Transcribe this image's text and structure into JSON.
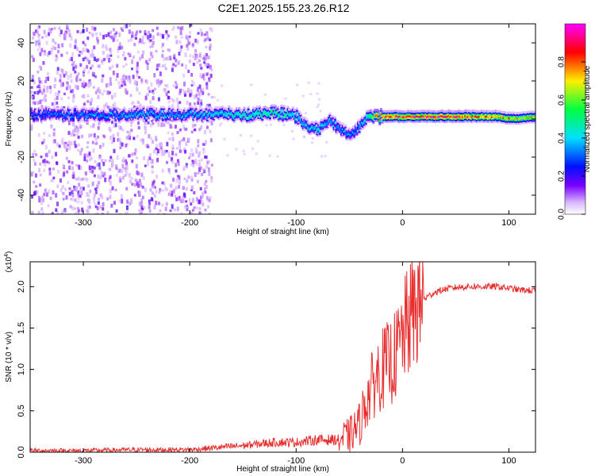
{
  "title": "C2E1.2025.155.23.26.R12",
  "colors": {
    "signal": "#ff0000",
    "line": "#e83030",
    "frame": "#000000"
  },
  "chart_data": [
    {
      "type": "heatmap",
      "xlabel": "Height of straight line (km)",
      "ylabel": "Frequency (Hz)",
      "xlim": [
        -350,
        125
      ],
      "ylim": [
        -50,
        50
      ],
      "x_ticks": [
        -300,
        -200,
        -100,
        0,
        100
      ],
      "x_tick_labels": [
        "-300",
        "-200",
        "-100",
        "0",
        "100"
      ],
      "y_ticks": [
        -40,
        -20,
        0,
        20,
        40
      ],
      "y_tick_labels": [
        "-40",
        "-20",
        "0",
        "20",
        "40"
      ],
      "grid": false,
      "colorbar": {
        "label": "Normalized spectral amplitude",
        "ticks": [
          0.0,
          0.2,
          0.4,
          0.6,
          0.8
        ],
        "tick_labels": [
          "0.0",
          "0.2",
          "0.4",
          "0.6",
          "0.8"
        ],
        "range": [
          0,
          1
        ],
        "colormap": "rainbow (white-violet-blue-cyan-green-yellow-red-magenta)"
      },
      "ridge_frequency": {
        "x": [
          -350,
          -300,
          -250,
          -200,
          -150,
          -120,
          -100,
          -90,
          -80,
          -70,
          -60,
          -50,
          -45,
          -40,
          -35,
          -30,
          -25,
          -20,
          0,
          50,
          80,
          90,
          100,
          110,
          125
        ],
        "y": [
          3,
          3,
          3,
          3,
          3,
          4,
          2,
          -3,
          -5,
          0,
          -4,
          -8,
          -5,
          -2,
          2,
          3,
          2,
          2,
          2,
          2,
          2,
          2,
          1,
          1,
          2
        ],
        "peak_amplitude": [
          0.35,
          0.4,
          0.45,
          0.45,
          0.55,
          0.6,
          0.5,
          0.45,
          0.5,
          0.45,
          0.45,
          0.4,
          0.4,
          0.45,
          0.5,
          0.7,
          0.85,
          1.0,
          1.0,
          1.0,
          0.95,
          0.9,
          0.85,
          0.8,
          0.8
        ]
      },
      "scatter_region_x": [
        -350,
        -180
      ]
    },
    {
      "type": "line",
      "xlabel": "Height of straight line (km)",
      "ylabel": "SNR (10 * v/v)",
      "y_scale_label": "(x10",
      "y_scale_exponent": "4",
      "y_scale_suffix": ")",
      "xlim": [
        -350,
        125
      ],
      "ylim": [
        0,
        2.3
      ],
      "x_ticks": [
        -300,
        -200,
        -100,
        0,
        100
      ],
      "x_tick_labels": [
        "-300",
        "-200",
        "-100",
        "0",
        "100"
      ],
      "y_ticks": [
        0.0,
        0.5,
        1.0,
        1.5,
        2.0
      ],
      "y_tick_labels": [
        "0.0",
        "0.5",
        "1.0",
        "1.5",
        "2.0"
      ],
      "grid": false,
      "series": [
        {
          "x": [
            -350,
            -300,
            -250,
            -200,
            -180,
            -150,
            -120,
            -100,
            -80,
            -60,
            -50,
            -40,
            -35,
            -30,
            -25,
            -20,
            -15,
            -10,
            -5,
            0,
            5,
            10,
            20,
            30,
            40,
            50,
            60,
            70,
            80,
            90,
            100,
            110,
            125
          ],
          "y": [
            0.02,
            0.02,
            0.03,
            0.03,
            0.05,
            0.08,
            0.12,
            0.12,
            0.15,
            0.15,
            0.2,
            0.35,
            0.6,
            0.75,
            0.9,
            1.0,
            1.05,
            1.1,
            1.2,
            1.4,
            1.55,
            1.7,
            1.85,
            1.93,
            1.97,
            1.99,
            2.0,
            2.0,
            2.0,
            2.0,
            1.98,
            1.96,
            1.95
          ]
        }
      ]
    }
  ]
}
